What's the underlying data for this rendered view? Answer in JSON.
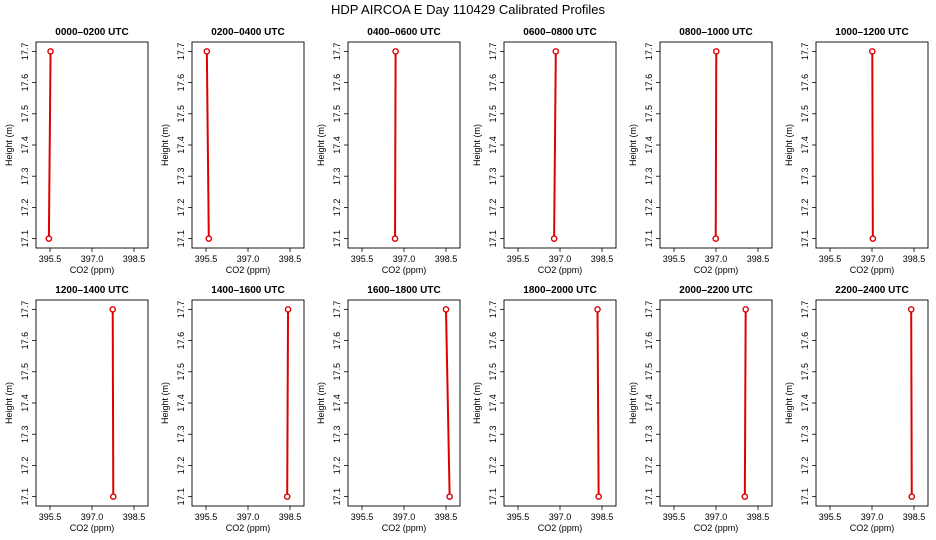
{
  "figure": {
    "title": "HDP AIRCOA E  Day 110429  Calibrated Profiles"
  },
  "chart_data": [
    {
      "type": "line",
      "title": "0000–0200 UTC",
      "xlabel": "CO2 (ppm)",
      "ylabel": "Height (m)",
      "xlim": [
        395.0,
        399.0
      ],
      "ylim": [
        17.07,
        17.73
      ],
      "xticks": [
        "395.5",
        "397.0",
        "398.5"
      ],
      "yticks": [
        "17.1",
        "17.2",
        "17.3",
        "17.4",
        "17.5",
        "17.6",
        "17.7"
      ],
      "x": [
        395.52,
        395.46
      ],
      "y": [
        17.7,
        17.1
      ]
    },
    {
      "type": "line",
      "title": "0200–0400 UTC",
      "xlabel": "CO2 (ppm)",
      "ylabel": "Height (m)",
      "xlim": [
        395.0,
        399.0
      ],
      "ylim": [
        17.07,
        17.73
      ],
      "xticks": [
        "395.5",
        "397.0",
        "398.5"
      ],
      "yticks": [
        "17.1",
        "17.2",
        "17.3",
        "17.4",
        "17.5",
        "17.6",
        "17.7"
      ],
      "x": [
        395.53,
        395.6
      ],
      "y": [
        17.7,
        17.1
      ]
    },
    {
      "type": "line",
      "title": "0400–0600 UTC",
      "xlabel": "CO2 (ppm)",
      "ylabel": "Height (m)",
      "xlim": [
        395.0,
        399.0
      ],
      "ylim": [
        17.07,
        17.73
      ],
      "xticks": [
        "395.5",
        "397.0",
        "398.5"
      ],
      "yticks": [
        "17.1",
        "17.2",
        "17.3",
        "17.4",
        "17.5",
        "17.6",
        "17.7"
      ],
      "x": [
        396.7,
        396.68
      ],
      "y": [
        17.7,
        17.1
      ]
    },
    {
      "type": "line",
      "title": "0600–0800 UTC",
      "xlabel": "CO2 (ppm)",
      "ylabel": "Height (m)",
      "xlim": [
        395.0,
        399.0
      ],
      "ylim": [
        17.07,
        17.73
      ],
      "xticks": [
        "395.5",
        "397.0",
        "398.5"
      ],
      "yticks": [
        "17.1",
        "17.2",
        "17.3",
        "17.4",
        "17.5",
        "17.6",
        "17.7"
      ],
      "x": [
        396.85,
        396.79
      ],
      "y": [
        17.7,
        17.1
      ]
    },
    {
      "type": "line",
      "title": "0800–1000 UTC",
      "xlabel": "CO2 (ppm)",
      "ylabel": "Height (m)",
      "xlim": [
        395.0,
        399.0
      ],
      "ylim": [
        17.07,
        17.73
      ],
      "xticks": [
        "395.5",
        "397.0",
        "398.5"
      ],
      "yticks": [
        "17.1",
        "17.2",
        "17.3",
        "17.4",
        "17.5",
        "17.6",
        "17.7"
      ],
      "x": [
        397.01,
        396.99
      ],
      "y": [
        17.7,
        17.1
      ]
    },
    {
      "type": "line",
      "title": "1000–1200 UTC",
      "xlabel": "CO2 (ppm)",
      "ylabel": "Height (m)",
      "xlim": [
        395.0,
        399.0
      ],
      "ylim": [
        17.07,
        17.73
      ],
      "xticks": [
        "395.5",
        "397.0",
        "398.5"
      ],
      "yticks": [
        "17.1",
        "17.2",
        "17.3",
        "17.4",
        "17.5",
        "17.6",
        "17.7"
      ],
      "x": [
        397.01,
        397.03
      ],
      "y": [
        17.7,
        17.1
      ]
    },
    {
      "type": "line",
      "title": "1200–1400 UTC",
      "xlabel": "CO2 (ppm)",
      "ylabel": "Height (m)",
      "xlim": [
        395.0,
        399.0
      ],
      "ylim": [
        17.07,
        17.73
      ],
      "xticks": [
        "395.5",
        "397.0",
        "398.5"
      ],
      "yticks": [
        "17.1",
        "17.2",
        "17.3",
        "17.4",
        "17.5",
        "17.6",
        "17.7"
      ],
      "x": [
        397.74,
        397.76
      ],
      "y": [
        17.7,
        17.1
      ]
    },
    {
      "type": "line",
      "title": "1400–1600 UTC",
      "xlabel": "CO2 (ppm)",
      "ylabel": "Height (m)",
      "xlim": [
        395.0,
        399.0
      ],
      "ylim": [
        17.07,
        17.73
      ],
      "xticks": [
        "395.5",
        "397.0",
        "398.5"
      ],
      "yticks": [
        "17.1",
        "17.2",
        "17.3",
        "17.4",
        "17.5",
        "17.6",
        "17.7"
      ],
      "x": [
        398.43,
        398.4
      ],
      "y": [
        17.7,
        17.1
      ]
    },
    {
      "type": "line",
      "title": "1600–1800 UTC",
      "xlabel": "CO2 (ppm)",
      "ylabel": "Height (m)",
      "xlim": [
        395.0,
        399.0
      ],
      "ylim": [
        17.07,
        17.73
      ],
      "xticks": [
        "395.5",
        "397.0",
        "398.5"
      ],
      "yticks": [
        "17.1",
        "17.2",
        "17.3",
        "17.4",
        "17.5",
        "17.6",
        "17.7"
      ],
      "x": [
        398.5,
        398.63
      ],
      "y": [
        17.7,
        17.1
      ]
    },
    {
      "type": "line",
      "title": "1800–2000 UTC",
      "xlabel": "CO2 (ppm)",
      "ylabel": "Height (m)",
      "xlim": [
        395.0,
        399.0
      ],
      "ylim": [
        17.07,
        17.73
      ],
      "xticks": [
        "395.5",
        "397.0",
        "398.5"
      ],
      "yticks": [
        "17.1",
        "17.2",
        "17.3",
        "17.4",
        "17.5",
        "17.6",
        "17.7"
      ],
      "x": [
        398.34,
        398.38
      ],
      "y": [
        17.7,
        17.1
      ]
    },
    {
      "type": "line",
      "title": "2000–2200 UTC",
      "xlabel": "CO2 (ppm)",
      "ylabel": "Height (m)",
      "xlim": [
        395.0,
        399.0
      ],
      "ylim": [
        17.07,
        17.73
      ],
      "xticks": [
        "395.5",
        "397.0",
        "398.5"
      ],
      "yticks": [
        "17.1",
        "17.2",
        "17.3",
        "17.4",
        "17.5",
        "17.6",
        "17.7"
      ],
      "x": [
        398.06,
        398.03
      ],
      "y": [
        17.7,
        17.1
      ]
    },
    {
      "type": "line",
      "title": "2200–2400 UTC",
      "xlabel": "CO2 (ppm)",
      "ylabel": "Height (m)",
      "xlim": [
        395.0,
        399.0
      ],
      "ylim": [
        17.07,
        17.73
      ],
      "xticks": [
        "395.5",
        "397.0",
        "398.5"
      ],
      "yticks": [
        "17.1",
        "17.2",
        "17.3",
        "17.4",
        "17.5",
        "17.6",
        "17.7"
      ],
      "x": [
        398.4,
        398.42
      ],
      "y": [
        17.7,
        17.1
      ]
    }
  ],
  "colors": {
    "series": "#dd0000",
    "axes": "#000000",
    "marker_face": "#ffffff"
  },
  "markers": {
    "shape": "open-circle"
  }
}
